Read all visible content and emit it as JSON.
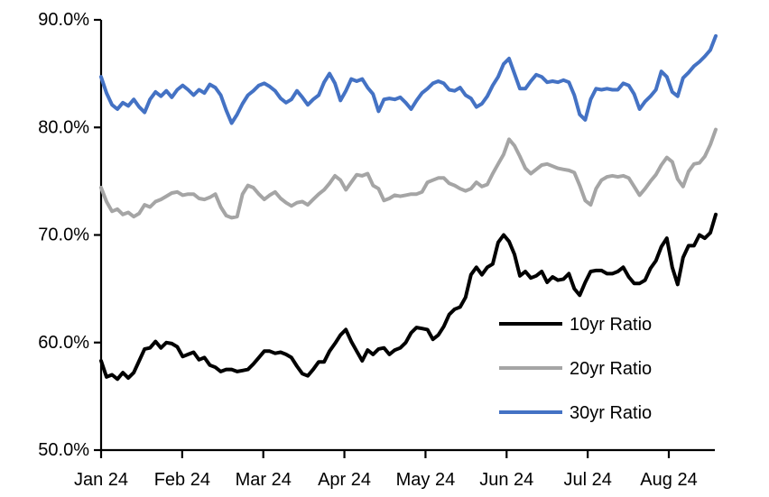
{
  "chart_data": {
    "type": "line",
    "title": "",
    "background_color": "#FFFFFF",
    "axis_color": "#000000",
    "grid": "off",
    "legend_position": "inside-right-lower",
    "x_axis": {
      "tick_labels": [
        "Jan 24",
        "Feb 24",
        "Mar 24",
        "Apr 24",
        "May 24",
        "Jun 24",
        "Jul 24",
        "Aug 24"
      ],
      "note": "daily data from Jan 2024 to mid-Aug 2024, evenly spaced points"
    },
    "y_axis": {
      "min": 50,
      "max": 90,
      "tick_step": 10,
      "tick_labels": [
        "50.0%",
        "60.0%",
        "70.0%",
        "80.0%",
        "90.0%"
      ],
      "unit": "%"
    },
    "series": [
      {
        "name": "10yr Ratio",
        "color": "#000000",
        "values": [
          58.3,
          56.8,
          57.0,
          56.6,
          57.2,
          56.7,
          57.2,
          58.3,
          59.4,
          59.5,
          60.1,
          59.5,
          60.0,
          59.9,
          59.6,
          58.7,
          58.9,
          59.1,
          58.4,
          58.6,
          57.9,
          57.7,
          57.3,
          57.5,
          57.5,
          57.3,
          57.4,
          57.5,
          58.0,
          58.6,
          59.2,
          59.2,
          59.0,
          59.1,
          58.9,
          58.6,
          57.8,
          57.1,
          56.9,
          57.5,
          58.2,
          58.2,
          59.2,
          59.9,
          60.7,
          61.2,
          60.1,
          59.2,
          58.3,
          59.3,
          58.9,
          59.4,
          59.5,
          58.9,
          59.3,
          59.5,
          60.0,
          60.9,
          61.4,
          61.3,
          61.2,
          60.3,
          60.7,
          61.5,
          62.6,
          63.1,
          63.3,
          64.2,
          66.3,
          67.0,
          66.3,
          67.0,
          67.3,
          69.3,
          70.0,
          69.4,
          68.2,
          66.2,
          66.6,
          66.0,
          66.2,
          66.6,
          65.6,
          66.1,
          65.8,
          65.9,
          66.4,
          65.0,
          64.4,
          65.6,
          66.6,
          66.7,
          66.7,
          66.4,
          66.4,
          66.6,
          67.0,
          66.1,
          65.5,
          65.5,
          65.8,
          66.9,
          67.6,
          68.9,
          69.7,
          67.0,
          65.4,
          67.9,
          69.0,
          69.0,
          70.0,
          69.7,
          70.2,
          71.9
        ]
      },
      {
        "name": "20yr Ratio",
        "color": "#A5A5A5",
        "values": [
          74.4,
          73.1,
          72.2,
          72.4,
          71.9,
          72.1,
          71.7,
          72.0,
          72.8,
          72.6,
          73.1,
          73.3,
          73.6,
          73.9,
          74.0,
          73.7,
          73.8,
          73.8,
          73.4,
          73.3,
          73.5,
          73.8,
          72.6,
          71.8,
          71.6,
          71.7,
          73.8,
          74.6,
          74.4,
          73.8,
          73.3,
          73.7,
          74.0,
          73.4,
          73.0,
          72.7,
          73.0,
          73.1,
          72.8,
          73.3,
          73.8,
          74.2,
          74.8,
          75.5,
          75.1,
          74.2,
          74.9,
          75.6,
          75.5,
          75.7,
          74.6,
          74.3,
          73.2,
          73.4,
          73.7,
          73.6,
          73.7,
          73.8,
          73.8,
          74.0,
          74.9,
          75.1,
          75.3,
          75.3,
          74.8,
          74.6,
          74.3,
          74.1,
          74.3,
          74.9,
          74.5,
          74.7,
          75.7,
          76.6,
          77.5,
          78.9,
          78.3,
          77.3,
          76.2,
          75.7,
          76.1,
          76.5,
          76.6,
          76.4,
          76.2,
          76.1,
          76.0,
          75.8,
          74.6,
          73.2,
          72.8,
          74.3,
          75.1,
          75.4,
          75.5,
          75.4,
          75.5,
          75.3,
          74.5,
          73.7,
          74.3,
          75.0,
          75.6,
          76.5,
          77.2,
          76.8,
          75.2,
          74.5,
          75.9,
          76.6,
          76.7,
          77.3,
          78.4,
          79.8
        ]
      },
      {
        "name": "30yr Ratio",
        "color": "#4472C4",
        "values": [
          84.7,
          83.2,
          82.1,
          81.7,
          82.3,
          82.0,
          82.6,
          81.9,
          81.4,
          82.6,
          83.3,
          82.9,
          83.4,
          82.8,
          83.5,
          83.9,
          83.5,
          83.0,
          83.5,
          83.2,
          84.0,
          83.7,
          83.0,
          81.6,
          80.4,
          81.2,
          82.2,
          83.0,
          83.4,
          83.9,
          84.1,
          83.8,
          83.4,
          82.7,
          82.3,
          82.6,
          83.4,
          82.8,
          82.1,
          82.6,
          83.0,
          84.2,
          85.0,
          84.1,
          82.5,
          83.4,
          84.5,
          84.3,
          84.5,
          83.7,
          83.1,
          81.5,
          82.6,
          82.7,
          82.6,
          82.8,
          82.3,
          81.7,
          82.5,
          83.2,
          83.6,
          84.1,
          84.3,
          84.1,
          83.5,
          83.4,
          83.7,
          83.0,
          82.7,
          81.9,
          82.2,
          82.9,
          83.9,
          84.7,
          85.9,
          86.4,
          85.0,
          83.6,
          83.6,
          84.3,
          84.9,
          84.7,
          84.2,
          84.3,
          84.2,
          84.4,
          84.2,
          83.0,
          81.2,
          80.7,
          82.6,
          83.6,
          83.5,
          83.6,
          83.5,
          83.5,
          84.1,
          83.9,
          83.1,
          81.7,
          82.4,
          82.9,
          83.5,
          85.2,
          84.7,
          83.3,
          82.9,
          84.6,
          85.1,
          85.7,
          86.1,
          86.6,
          87.2,
          88.5
        ]
      }
    ]
  }
}
